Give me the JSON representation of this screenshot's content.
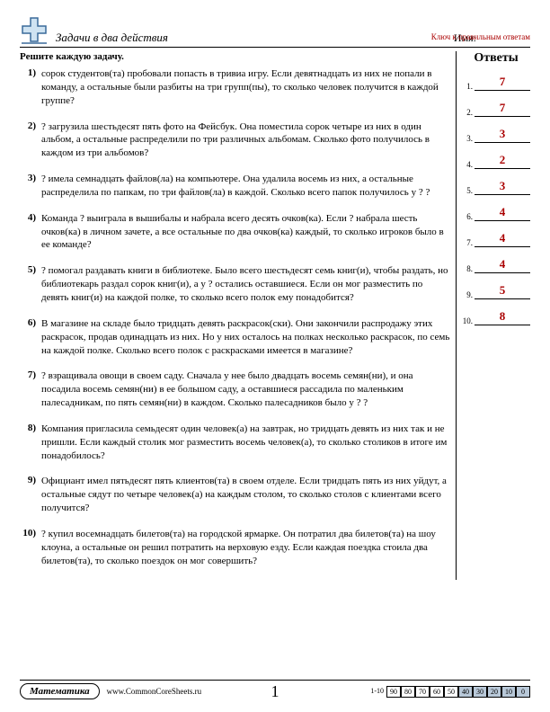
{
  "header": {
    "title": "Задачи в два действия",
    "name_label": "Имя:",
    "key_label": "Ключ к правильным ответам"
  },
  "instruction": "Решите каждую задачу.",
  "problems": [
    {
      "num": "1)",
      "text": "сорок студентов(та) пробовали попасть в тривиа игру. Если девятнадцать из них не попали в команду, а остальные были разбиты на три групп(пы), то сколько человек получится в каждой группе?"
    },
    {
      "num": "2)",
      "text": "? загрузила шестьдесят пять фото на Фейсбук. Она поместила сорок четыре из них в один альбом, а остальные распределили по три различных альбомам. Сколько фото получилось в каждом из три альбомов?"
    },
    {
      "num": "3)",
      "text": "? имела семнадцать файлов(ла) на компьютере. Она удалила восемь из них, а остальные распределила по папкам, по три файлов(ла) в каждой. Сколько всего папок получилось у ? ?"
    },
    {
      "num": "4)",
      "text": "Команда ? выиграла в вышибалы и набрала всего десять очков(ка). Если ? набрала шесть очков(ка) в личном зачете, а все остальные по два очков(ка) каждый, то сколько игроков было в ее команде?"
    },
    {
      "num": "5)",
      "text": "? помогал раздавать книги в библиотеке. Было всего шестьдесят семь книг(и), чтобы раздать, но библиотекарь раздал сорок книг(и), а у ? остались оставшиеся. Если он мог разместить по девять книг(и) на каждой полке, то сколько всего полок ему понадобится?"
    },
    {
      "num": "6)",
      "text": "В магазине на складе было тридцать девять раскрасок(ски). Они закончили распродажу этих раскрасок, продав одинадцать из них. Но у них осталось на полках несколько раскрасок, по семь на каждой полке. Сколько всего полок с раскрасками имеется в магазине?"
    },
    {
      "num": "7)",
      "text": "? взращивала овощи в своем саду. Сначала у нее было двадцать восемь семян(ни), и она посадила восемь семян(ни) в ее большом саду, а оставшиеся рассадила по маленьким палесадникам, по пять семян(ни) в каждом. Сколько палесадников было у ? ?"
    },
    {
      "num": "8)",
      "text": "Компания пригласила семьдесят один человек(а) на завтрак, но тридцать девять из них так и не пришли. Если каждый столик мог разместить восемь человек(а), то сколько столиков в итоге им понадобилось?"
    },
    {
      "num": "9)",
      "text": "Официант имел пятьдесят пять клиентов(та) в своем отделе. Если тридцать пять из них уйдут, а остальные сядут по четыре человек(а) на каждым столом, то сколько столов с клиентами всего получится?"
    },
    {
      "num": "10)",
      "text": "? купил восемнадцать билетов(та) на городской ярмарке. Он потратил два билетов(та) на шоу клоуна, а остальные он решил потратить на верховую езду. Если каждая поездка стоила два билетов(та), то сколько поездок он мог совершить?"
    }
  ],
  "answers_title": "Ответы",
  "answers": [
    {
      "num": "1.",
      "val": "7"
    },
    {
      "num": "2.",
      "val": "7"
    },
    {
      "num": "3.",
      "val": "3"
    },
    {
      "num": "4.",
      "val": "2"
    },
    {
      "num": "5.",
      "val": "3"
    },
    {
      "num": "6.",
      "val": "4"
    },
    {
      "num": "7.",
      "val": "4"
    },
    {
      "num": "8.",
      "val": "4"
    },
    {
      "num": "9.",
      "val": "5"
    },
    {
      "num": "10.",
      "val": "8"
    }
  ],
  "footer": {
    "subject": "Математика",
    "site": "www.CommonCoreSheets.ru",
    "page": "1",
    "score_label": "1-10",
    "scores": [
      "90",
      "80",
      "70",
      "60",
      "50",
      "40",
      "30",
      "20",
      "10",
      "0"
    ],
    "shaded_from": 5
  },
  "colors": {
    "accent": "#a00000",
    "logo_fill": "#cfe3f2",
    "logo_stroke": "#3a6a9a"
  }
}
